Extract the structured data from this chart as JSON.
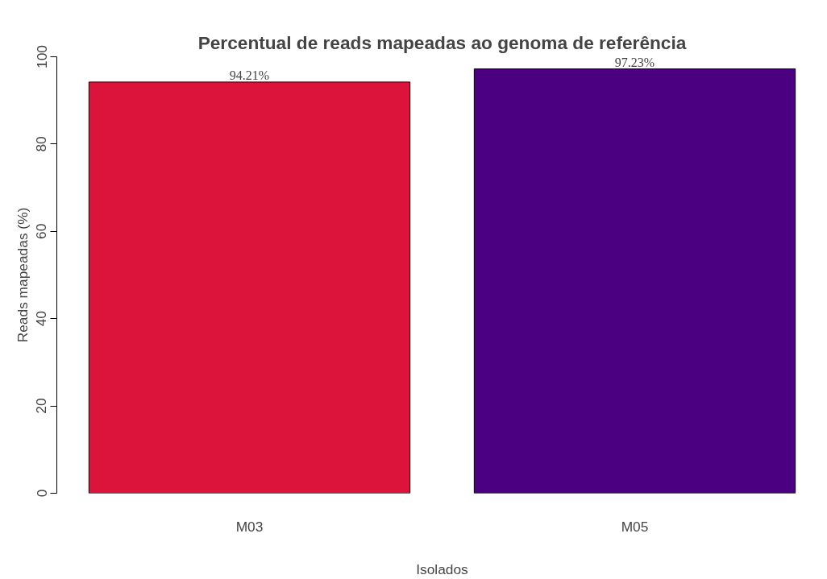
{
  "chart_data": {
    "type": "bar",
    "title": "Percentual de reads mapeadas ao genoma de referência",
    "xlabel": "Isolados",
    "ylabel": "Reads mapeadas (%)",
    "categories": [
      "M03",
      "M05"
    ],
    "values": [
      94.21,
      97.23
    ],
    "colors": [
      "#dc143c",
      "#4b0082"
    ],
    "value_labels": [
      "94.21%",
      "97.23%"
    ],
    "ylim": [
      0,
      100
    ],
    "yticks": [
      0,
      20,
      40,
      60,
      80,
      100
    ],
    "grid": false
  }
}
